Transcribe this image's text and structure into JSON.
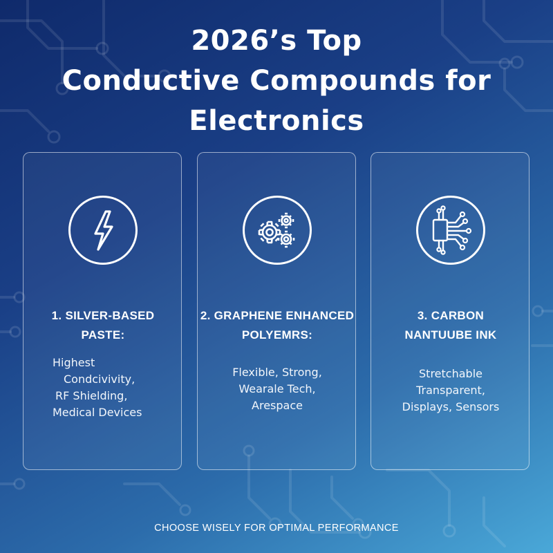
{
  "title": {
    "line1": "2026’s Top",
    "line2": "Conductive Compounds for",
    "line3": "Electronics"
  },
  "cards": [
    {
      "icon": "lightning-bolt-icon",
      "title_lines": [
        "1. SILVER-BASED",
        "PASTE:"
      ],
      "text_lines": [
        "Highest",
        "Condcivivity,",
        "RF Shielding,",
        "Medical Devices"
      ]
    },
    {
      "icon": "gears-icon",
      "title_lines": [
        "2. GRAPHENE ENHANCED",
        "POLYEMRS:"
      ],
      "text_lines": [
        "Flexible, Strong,",
        "Wearale Tech,",
        "Arespace"
      ]
    },
    {
      "icon": "circuit-chip-icon",
      "title_lines": [
        "3. CARBON",
        "NANTUUBE INK"
      ],
      "text_lines": [
        "Stretchable",
        "Transparent,",
        "Displays, Sensors"
      ]
    }
  ],
  "footer": "CHOOSE WISELY FOR OPTIMAL PERFORMANCE",
  "colors": {
    "background_top": "#0f2a6b",
    "background_bottom": "#4aa8d8",
    "text": "#ffffff"
  }
}
